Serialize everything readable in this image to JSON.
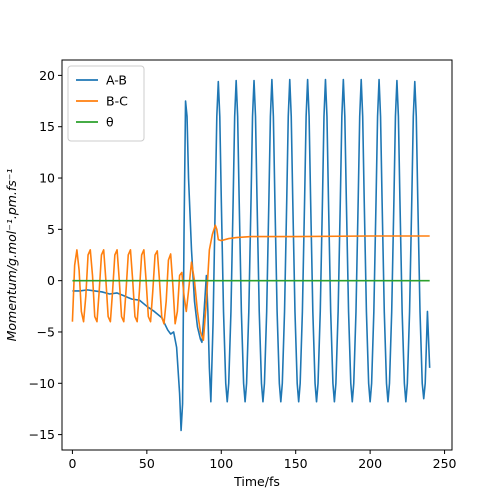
{
  "chart_data": {
    "type": "line",
    "title": "",
    "xlabel": "Time/fs",
    "ylabel": "Momentum/g.mol⁻¹.pm.fs⁻¹",
    "xlim": [
      -7,
      255
    ],
    "ylim": [
      -16.5,
      21.5
    ],
    "xticks": [
      0,
      50,
      100,
      150,
      200,
      250
    ],
    "yticks": [
      -15,
      -10,
      -5,
      0,
      5,
      10,
      15,
      20
    ],
    "grid": false,
    "legend": "top-left",
    "series": [
      {
        "name": "A-B",
        "color": "#1f77b4",
        "points": [
          [
            0,
            -1
          ],
          [
            5,
            -1
          ],
          [
            10,
            -0.9
          ],
          [
            15,
            -1
          ],
          [
            20,
            -1.1
          ],
          [
            25,
            -1.3
          ],
          [
            30,
            -1.2
          ],
          [
            35,
            -1.5
          ],
          [
            40,
            -1.8
          ],
          [
            45,
            -1.9
          ],
          [
            50,
            -2.5
          ],
          [
            55,
            -3.0
          ],
          [
            60,
            -3.6
          ],
          [
            64,
            -4.8
          ],
          [
            66,
            -5.2
          ],
          [
            68,
            -5
          ],
          [
            70,
            -6.5
          ],
          [
            72,
            -11
          ],
          [
            73,
            -14.6
          ],
          [
            74,
            -12
          ],
          [
            75,
            5
          ],
          [
            76,
            17.5
          ],
          [
            77,
            16
          ],
          [
            78,
            10
          ],
          [
            80,
            3
          ],
          [
            82,
            -2
          ],
          [
            84,
            -4.5
          ],
          [
            86,
            -5.7
          ],
          [
            87,
            -6
          ],
          [
            88,
            -4
          ],
          [
            90,
            0.5
          ],
          [
            91,
            -3
          ],
          [
            92,
            -8.5
          ],
          [
            93,
            -11.8
          ],
          [
            94.5,
            -4
          ],
          [
            96,
            8
          ],
          [
            97,
            16
          ],
          [
            98,
            19.4
          ],
          [
            99,
            16
          ],
          [
            100,
            8
          ],
          [
            101.5,
            -3
          ],
          [
            103,
            -10
          ],
          [
            104,
            -11.8
          ],
          [
            105,
            -10
          ],
          [
            106.5,
            -3
          ],
          [
            108,
            8
          ],
          [
            109,
            16
          ],
          [
            110,
            19.5
          ],
          [
            111,
            16
          ],
          [
            112,
            8
          ],
          [
            113.5,
            -3
          ],
          [
            115,
            -10
          ],
          [
            116,
            -11.8
          ],
          [
            117,
            -10
          ],
          [
            118.5,
            -3
          ],
          [
            120,
            8
          ],
          [
            121,
            16
          ],
          [
            122,
            19.5
          ],
          [
            123,
            16
          ],
          [
            124,
            8
          ],
          [
            125.5,
            -3
          ],
          [
            127,
            -10
          ],
          [
            128,
            -11.8
          ],
          [
            129,
            -10
          ],
          [
            130.5,
            -3
          ],
          [
            132,
            8
          ],
          [
            133,
            16
          ],
          [
            134,
            19.6
          ],
          [
            135,
            16
          ],
          [
            136,
            8
          ],
          [
            137.5,
            -3
          ],
          [
            139,
            -10
          ],
          [
            140,
            -11.8
          ],
          [
            141,
            -10
          ],
          [
            142.5,
            -3
          ],
          [
            144,
            8
          ],
          [
            145,
            16
          ],
          [
            146,
            19.6
          ],
          [
            147,
            16
          ],
          [
            148,
            8
          ],
          [
            149.5,
            -3
          ],
          [
            151,
            -10
          ],
          [
            152,
            -11.8
          ],
          [
            153,
            -10
          ],
          [
            154.5,
            -3
          ],
          [
            156,
            8
          ],
          [
            157,
            16
          ],
          [
            158,
            19.6
          ],
          [
            159,
            16
          ],
          [
            160,
            8
          ],
          [
            161.5,
            -3
          ],
          [
            163,
            -10
          ],
          [
            164,
            -11.8
          ],
          [
            165,
            -10
          ],
          [
            166.5,
            -3
          ],
          [
            168,
            8
          ],
          [
            169,
            16
          ],
          [
            170,
            19.6
          ],
          [
            171,
            16
          ],
          [
            172,
            8
          ],
          [
            173.5,
            -3
          ],
          [
            175,
            -10
          ],
          [
            176,
            -11.8
          ],
          [
            177,
            -10
          ],
          [
            178.5,
            -3
          ],
          [
            180,
            8
          ],
          [
            181,
            16
          ],
          [
            182,
            19.6
          ],
          [
            183,
            16
          ],
          [
            184,
            8
          ],
          [
            185.5,
            -3
          ],
          [
            187,
            -10
          ],
          [
            188,
            -11.8
          ],
          [
            189,
            -10
          ],
          [
            190.5,
            -3
          ],
          [
            192,
            8
          ],
          [
            193,
            16
          ],
          [
            194,
            19.6
          ],
          [
            195,
            16
          ],
          [
            196,
            8
          ],
          [
            197.5,
            -3
          ],
          [
            199,
            -10
          ],
          [
            200,
            -11.8
          ],
          [
            201,
            -10
          ],
          [
            202.5,
            -3
          ],
          [
            204,
            8
          ],
          [
            205,
            16
          ],
          [
            206,
            19.6
          ],
          [
            207,
            16
          ],
          [
            208,
            8
          ],
          [
            209.5,
            -3
          ],
          [
            211,
            -10
          ],
          [
            212,
            -11.8
          ],
          [
            213,
            -10
          ],
          [
            214.5,
            -3
          ],
          [
            216,
            8
          ],
          [
            217,
            16
          ],
          [
            218,
            19.5
          ],
          [
            219,
            16
          ],
          [
            220,
            8
          ],
          [
            221.5,
            -3
          ],
          [
            223,
            -10
          ],
          [
            224,
            -11.8
          ],
          [
            225,
            -10
          ],
          [
            226.5,
            -3
          ],
          [
            228,
            8
          ],
          [
            229,
            16
          ],
          [
            230,
            19.4
          ],
          [
            231,
            16
          ],
          [
            232,
            8
          ],
          [
            233.5,
            -3
          ],
          [
            235,
            -10
          ],
          [
            236,
            -11.5
          ],
          [
            237,
            -10
          ],
          [
            238.5,
            -3
          ],
          [
            240,
            -8.5
          ]
        ]
      },
      {
        "name": "B-C",
        "color": "#ff7f0e",
        "points": [
          [
            0,
            -4
          ],
          [
            1.5,
            1.5
          ],
          [
            3,
            3
          ],
          [
            4.5,
            1
          ],
          [
            6,
            -3
          ],
          [
            7.5,
            -4
          ],
          [
            9,
            -1.5
          ],
          [
            10.5,
            2.5
          ],
          [
            12,
            3
          ],
          [
            13.5,
            0.5
          ],
          [
            15,
            -3.5
          ],
          [
            16.5,
            -4
          ],
          [
            18,
            -1
          ],
          [
            19.5,
            2.5
          ],
          [
            21,
            3
          ],
          [
            22.5,
            0
          ],
          [
            24,
            -3.5
          ],
          [
            25.5,
            -4
          ],
          [
            27,
            -1
          ],
          [
            28.5,
            2.5
          ],
          [
            30,
            3
          ],
          [
            31.5,
            0
          ],
          [
            33,
            -3.5
          ],
          [
            34.5,
            -4
          ],
          [
            36,
            -1
          ],
          [
            37.5,
            2.5
          ],
          [
            39,
            3
          ],
          [
            40.5,
            0
          ],
          [
            42,
            -3.5
          ],
          [
            43.5,
            -4
          ],
          [
            45,
            -1
          ],
          [
            46.5,
            2.5
          ],
          [
            48,
            3
          ],
          [
            49.5,
            0
          ],
          [
            51,
            -3.5
          ],
          [
            52.5,
            -4
          ],
          [
            54,
            -1
          ],
          [
            55.5,
            2.5
          ],
          [
            57,
            2.9
          ],
          [
            58.5,
            0
          ],
          [
            60,
            -3.5
          ],
          [
            61.5,
            -4.2
          ],
          [
            63,
            -2
          ],
          [
            64.5,
            2
          ],
          [
            66,
            2.6
          ],
          [
            67.5,
            -0.5
          ],
          [
            69,
            -4.2
          ],
          [
            70.5,
            -3
          ],
          [
            72,
            0.5
          ],
          [
            73.5,
            0.8
          ],
          [
            75,
            -1.5
          ],
          [
            76.5,
            -3
          ],
          [
            78,
            -1
          ],
          [
            80,
            1.8
          ],
          [
            82,
            0
          ],
          [
            84,
            -3
          ],
          [
            86,
            -5
          ],
          [
            88,
            -5.8
          ],
          [
            90,
            -2
          ],
          [
            92,
            3
          ],
          [
            94,
            4.5
          ],
          [
            96,
            5.4
          ],
          [
            97,
            5
          ],
          [
            98,
            4
          ],
          [
            100,
            3.9
          ],
          [
            105,
            4.1
          ],
          [
            110,
            4.2
          ],
          [
            120,
            4.3
          ],
          [
            150,
            4.3
          ],
          [
            200,
            4.35
          ],
          [
            240,
            4.35
          ]
        ]
      },
      {
        "name": "θ",
        "color": "#2ca02c",
        "points": [
          [
            0,
            0
          ],
          [
            240,
            0
          ]
        ]
      }
    ]
  }
}
